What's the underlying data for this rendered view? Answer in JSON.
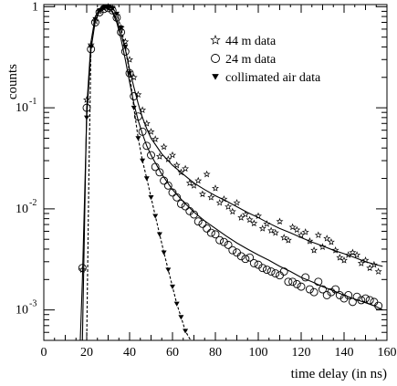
{
  "chart_data": {
    "type": "scatter",
    "title": "",
    "xlabel": "time delay (in ns)",
    "ylabel": "counts",
    "xlim": [
      0,
      160
    ],
    "ylim": [
      0.0005,
      1.05
    ],
    "yscale": "log",
    "xticks": [
      0,
      20,
      40,
      60,
      80,
      100,
      120,
      140,
      160
    ],
    "xtick_labels": [
      "0",
      "20",
      "40",
      "60",
      "80",
      "100",
      "120",
      "140",
      "160"
    ],
    "yticks": [
      0.001,
      0.01,
      0.1,
      1
    ],
    "ytick_labels": [
      {
        "base": "10",
        "exp": "-3"
      },
      {
        "base": "10",
        "exp": "-2"
      },
      {
        "base": "10",
        "exp": "-1"
      },
      {
        "base": "1",
        "exp": ""
      }
    ],
    "grid": false,
    "legend_position": "top-right",
    "series": [
      {
        "name": "44 m data",
        "marker": "star",
        "x": [
          18,
          20,
          22,
          24,
          26,
          28,
          30,
          32,
          34,
          36,
          38,
          40,
          42,
          44,
          46,
          48,
          50,
          52,
          54,
          56,
          58,
          60,
          62,
          64,
          66,
          68,
          70,
          72,
          74,
          76,
          78,
          80,
          82,
          84,
          86,
          88,
          90,
          92,
          94,
          96,
          98,
          100,
          102,
          104,
          106,
          108,
          110,
          112,
          114,
          116,
          118,
          120,
          122,
          124,
          126,
          128,
          130,
          132,
          134,
          136,
          138,
          140,
          142,
          144,
          146,
          148,
          150,
          152,
          154,
          156
        ],
        "y": [
          0.0025,
          0.12,
          0.42,
          0.72,
          0.9,
          0.97,
          1.0,
          0.97,
          0.82,
          0.62,
          0.45,
          0.3,
          0.2,
          0.135,
          0.095,
          0.07,
          0.058,
          0.049,
          0.033,
          0.041,
          0.031,
          0.034,
          0.027,
          0.023,
          0.025,
          0.018,
          0.017,
          0.019,
          0.014,
          0.022,
          0.013,
          0.016,
          0.0115,
          0.0125,
          0.0105,
          0.0094,
          0.0115,
          0.0082,
          0.0088,
          0.0078,
          0.0072,
          0.0085,
          0.0064,
          0.0071,
          0.0061,
          0.0058,
          0.0075,
          0.0052,
          0.0049,
          0.0066,
          0.0062,
          0.0055,
          0.0059,
          0.0048,
          0.0039,
          0.0055,
          0.0042,
          0.0051,
          0.0047,
          0.0039,
          0.0033,
          0.0031,
          0.0035,
          0.0037,
          0.0035,
          0.0029,
          0.0031,
          0.0026,
          0.0028,
          0.0024
        ]
      },
      {
        "name": "24 m data",
        "marker": "circle",
        "x": [
          18,
          20,
          22,
          24,
          26,
          28,
          30,
          32,
          34,
          36,
          38,
          40,
          42,
          44,
          46,
          48,
          50,
          52,
          54,
          56,
          58,
          60,
          62,
          64,
          66,
          68,
          70,
          72,
          74,
          76,
          78,
          80,
          82,
          84,
          86,
          88,
          90,
          92,
          94,
          96,
          98,
          100,
          102,
          104,
          106,
          108,
          110,
          112,
          114,
          116,
          118,
          120,
          122,
          124,
          126,
          128,
          130,
          132,
          134,
          136,
          138,
          140,
          142,
          144,
          146,
          148,
          150,
          152,
          154,
          156
        ],
        "y": [
          0.0026,
          0.1,
          0.38,
          0.7,
          0.88,
          0.95,
          0.97,
          0.92,
          0.78,
          0.56,
          0.36,
          0.22,
          0.13,
          0.082,
          0.058,
          0.042,
          0.034,
          0.026,
          0.023,
          0.019,
          0.017,
          0.0145,
          0.013,
          0.0112,
          0.0106,
          0.0095,
          0.0088,
          0.0075,
          0.0071,
          0.0064,
          0.0058,
          0.0056,
          0.0049,
          0.0047,
          0.0044,
          0.0039,
          0.0037,
          0.0034,
          0.0032,
          0.0033,
          0.0029,
          0.0028,
          0.0026,
          0.0025,
          0.0024,
          0.0023,
          0.0022,
          0.0024,
          0.0019,
          0.0019,
          0.0018,
          0.0017,
          0.0021,
          0.0016,
          0.0015,
          0.0019,
          0.0016,
          0.0014,
          0.0015,
          0.0016,
          0.0014,
          0.0013,
          0.0014,
          0.0012,
          0.00135,
          0.00125,
          0.0013,
          0.00125,
          0.0012,
          0.0011
        ]
      },
      {
        "name": "collimated air data",
        "marker": "triangle-down",
        "x": [
          20,
          22,
          24,
          26,
          28,
          30,
          32,
          34,
          36,
          38,
          40,
          42,
          44,
          46,
          48,
          50,
          52,
          54,
          56,
          58,
          60,
          62,
          64,
          66
        ],
        "y": [
          0.08,
          0.4,
          0.75,
          0.92,
          0.98,
          1.0,
          0.97,
          0.85,
          0.62,
          0.4,
          0.22,
          0.1,
          0.05,
          0.03,
          0.02,
          0.013,
          0.0085,
          0.0056,
          0.0037,
          0.0025,
          0.0017,
          0.00115,
          0.00085,
          0.00062
        ]
      }
    ],
    "fits": [
      {
        "for": "44 m data",
        "style": "solid",
        "x": [
          18,
          20,
          22,
          24,
          26,
          28,
          30,
          32,
          34,
          36,
          38,
          40,
          42,
          44,
          46,
          48,
          50,
          55,
          60,
          65,
          70,
          75,
          80,
          85,
          90,
          95,
          100,
          105,
          110,
          115,
          120,
          125,
          130,
          135,
          140,
          145,
          150,
          155,
          158
        ],
        "y": [
          0.0005,
          0.1,
          0.45,
          0.8,
          0.95,
          1.0,
          0.98,
          0.9,
          0.75,
          0.55,
          0.38,
          0.24,
          0.16,
          0.11,
          0.08,
          0.062,
          0.05,
          0.035,
          0.027,
          0.022,
          0.018,
          0.0155,
          0.0135,
          0.012,
          0.0105,
          0.0092,
          0.0082,
          0.0072,
          0.0064,
          0.0058,
          0.0052,
          0.0047,
          0.0043,
          0.0039,
          0.0036,
          0.0033,
          0.003,
          0.0028,
          0.0027
        ]
      },
      {
        "for": "24 m data",
        "style": "solid",
        "x": [
          17,
          18,
          20,
          22,
          24,
          26,
          28,
          30,
          32,
          34,
          36,
          38,
          40,
          42,
          44,
          46,
          48,
          50,
          55,
          60,
          65,
          70,
          75,
          80,
          85,
          90,
          95,
          100,
          105,
          110,
          115,
          120,
          125,
          130,
          135,
          140,
          145,
          150,
          155,
          158
        ],
        "y": [
          0.0005,
          0.002,
          0.08,
          0.38,
          0.72,
          0.9,
          0.97,
          0.97,
          0.88,
          0.7,
          0.48,
          0.3,
          0.18,
          0.11,
          0.075,
          0.055,
          0.042,
          0.034,
          0.022,
          0.0155,
          0.0118,
          0.0093,
          0.0076,
          0.0064,
          0.0054,
          0.0046,
          0.004,
          0.0035,
          0.0031,
          0.0027,
          0.0024,
          0.0021,
          0.0019,
          0.0017,
          0.00155,
          0.0014,
          0.00128,
          0.00118,
          0.00108,
          0.001
        ]
      },
      {
        "for": "collimated air data",
        "style": "dashed",
        "x": [
          20,
          21,
          22,
          24,
          26,
          28,
          30,
          32,
          34,
          36,
          38,
          40,
          42,
          44,
          46,
          48,
          50,
          52,
          54,
          56,
          58,
          60,
          62,
          64,
          66,
          68,
          69
        ],
        "y": [
          0.0005,
          0.02,
          0.4,
          0.75,
          0.92,
          0.98,
          1.0,
          0.97,
          0.85,
          0.62,
          0.4,
          0.22,
          0.1,
          0.05,
          0.03,
          0.02,
          0.013,
          0.0085,
          0.0056,
          0.0037,
          0.0025,
          0.0017,
          0.00115,
          0.00085,
          0.00062,
          0.00052,
          0.0005
        ]
      }
    ]
  }
}
